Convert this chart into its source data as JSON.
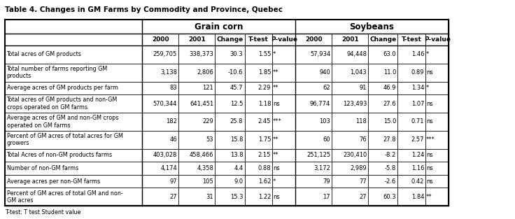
{
  "title": "Table 4. Changes in GM Farms by Commodity and Province, Quebec",
  "footnote": "T-test: T test Student value",
  "col_headers_level1": [
    "",
    "Grain corn",
    "",
    "",
    "",
    "",
    "Soybeans",
    "",
    "",
    "",
    ""
  ],
  "col_headers_level2": [
    "",
    "2000",
    "2001",
    "Change",
    "T-test",
    "P-value",
    "2000",
    "2001",
    "Change",
    "T-test",
    "P-value"
  ],
  "rows": [
    [
      "Total acres of GM products",
      "259,705",
      "338,373",
      "30.3",
      "1.55",
      "*",
      "57,934",
      "94,448",
      "63.0",
      "1.46",
      "*"
    ],
    [
      "Total number of farms reporting GM\nproducts",
      "3,138",
      "2,806",
      "-10.6",
      "1.85",
      "**",
      "940",
      "1,043",
      "11.0",
      "0.89",
      "ns"
    ],
    [
      "Average acres of GM products per farm",
      "83",
      "121",
      "45.7",
      "2.29",
      "**",
      "62",
      "91",
      "46.9",
      "1.34",
      "*"
    ],
    [
      "Total acres of GM products and non-GM\ncrops operated on GM farms",
      "570,344",
      "641,451",
      "12.5",
      "1.18",
      "ns",
      "96,774",
      "123,493",
      "27.6",
      "1.07",
      "ns"
    ],
    [
      "Average acres of GM and non-GM crops\noperated on GM farms",
      "182",
      "229",
      "25.8",
      "2.45",
      "***",
      "103",
      "118",
      "15.0",
      "0.71",
      "ns"
    ],
    [
      "Percent of GM acres of total acres for GM\ngrowers",
      "46",
      "53",
      "15.8",
      "1.75",
      "**",
      "60",
      "76",
      "27.8",
      "2.57",
      "***"
    ],
    [
      "Total Acres of non-GM products farms",
      "403,028",
      "458,466",
      "13.8",
      "2.15",
      "**",
      "251,125",
      "230,410",
      "-8.2",
      "1.24",
      "ns"
    ],
    [
      "Number of non-GM farms",
      "4,174",
      "4,358",
      "4.4",
      "0.88",
      "ns",
      "3,172",
      "2,989",
      "-5.8",
      "1.16",
      "ns"
    ],
    [
      "Average acres per non-GM farms",
      "97",
      "105",
      "9.0",
      "1.62",
      "*",
      "79",
      "77",
      "-2.6",
      "0.42",
      "ns"
    ],
    [
      "Percent of GM acres of total GM and non-\nGM acres",
      "27",
      "31",
      "15.3",
      "1.22",
      "ns",
      "17",
      "27",
      "60.3",
      "1.84",
      "**"
    ]
  ]
}
